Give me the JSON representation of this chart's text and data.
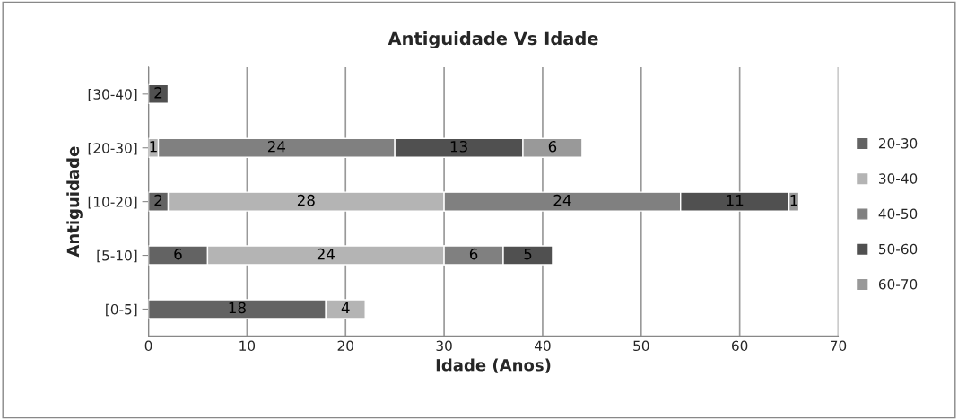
{
  "chart_data": {
    "type": "bar",
    "orientation": "horizontal",
    "stacked": true,
    "title": "Antiguidade Vs Idade",
    "xlabel": "Idade (Anos)",
    "ylabel": "Antiguidade",
    "categories": [
      "[30-40]",
      "[20-30]",
      "[10-20]",
      "[5-10]",
      "[0-5]"
    ],
    "series": [
      {
        "name": "20-30",
        "color": "#636363",
        "values": [
          null,
          null,
          2,
          6,
          18
        ]
      },
      {
        "name": "30-40",
        "color": "#b4b4b4",
        "values": [
          null,
          1,
          28,
          24,
          4
        ]
      },
      {
        "name": "40-50",
        "color": "#808080",
        "values": [
          null,
          24,
          24,
          6,
          null
        ]
      },
      {
        "name": "50-60",
        "color": "#505050",
        "values": [
          2,
          13,
          11,
          5,
          null
        ]
      },
      {
        "name": "60-70",
        "color": "#999999",
        "values": [
          null,
          6,
          1,
          null,
          null
        ]
      }
    ],
    "xlim": [
      0,
      70
    ],
    "xticks": [
      0,
      10,
      20,
      30,
      40,
      50,
      60,
      70
    ],
    "grid": "x",
    "legend": "right",
    "data_labels": true
  }
}
